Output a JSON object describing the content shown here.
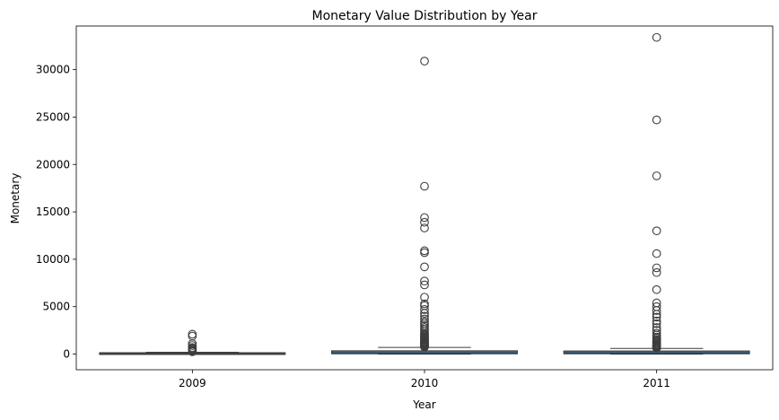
{
  "chart_data": {
    "type": "box",
    "title": "Monetary Value Distribution by Year",
    "xlabel": "Year",
    "ylabel": "Monetary",
    "categories": [
      "2009",
      "2010",
      "2011"
    ],
    "ylim": [
      -1650,
      34600
    ],
    "yticks": [
      0,
      5000,
      10000,
      15000,
      20000,
      25000,
      30000
    ],
    "grid": false,
    "box_color": "#3a6f99",
    "series": [
      {
        "category": "2009",
        "q1": 10,
        "median": 30,
        "q3": 100,
        "whisker_low": 0,
        "whisker_high": 200,
        "outliers": [
          250,
          300,
          400,
          500,
          600,
          700,
          900,
          1100,
          1900,
          2100
        ]
      },
      {
        "category": "2010",
        "q1": 30,
        "median": 120,
        "q3": 350,
        "whisker_low": 0,
        "whisker_high": 700,
        "outliers": [
          750,
          800,
          850,
          900,
          950,
          1000,
          1050,
          1100,
          1150,
          1200,
          1250,
          1300,
          1400,
          1500,
          1600,
          1700,
          1800,
          1900,
          2000,
          2100,
          2200,
          2400,
          2600,
          2800,
          3000,
          3200,
          3400,
          3700,
          4000,
          4300,
          4700,
          5100,
          5300,
          6000,
          7300,
          7700,
          9200,
          10700,
          10900,
          13300,
          13900,
          14400,
          17700,
          30900
        ]
      },
      {
        "category": "2011",
        "q1": 30,
        "median": 110,
        "q3": 330,
        "whisker_low": 0,
        "whisker_high": 600,
        "outliers": [
          650,
          700,
          750,
          800,
          850,
          900,
          950,
          1000,
          1100,
          1200,
          1300,
          1400,
          1500,
          1650,
          1800,
          2000,
          2200,
          2500,
          2800,
          3200,
          3500,
          3900,
          4200,
          4600,
          5000,
          5400,
          6800,
          8600,
          9100,
          10600,
          13000,
          18800,
          24700,
          33400
        ]
      }
    ]
  }
}
